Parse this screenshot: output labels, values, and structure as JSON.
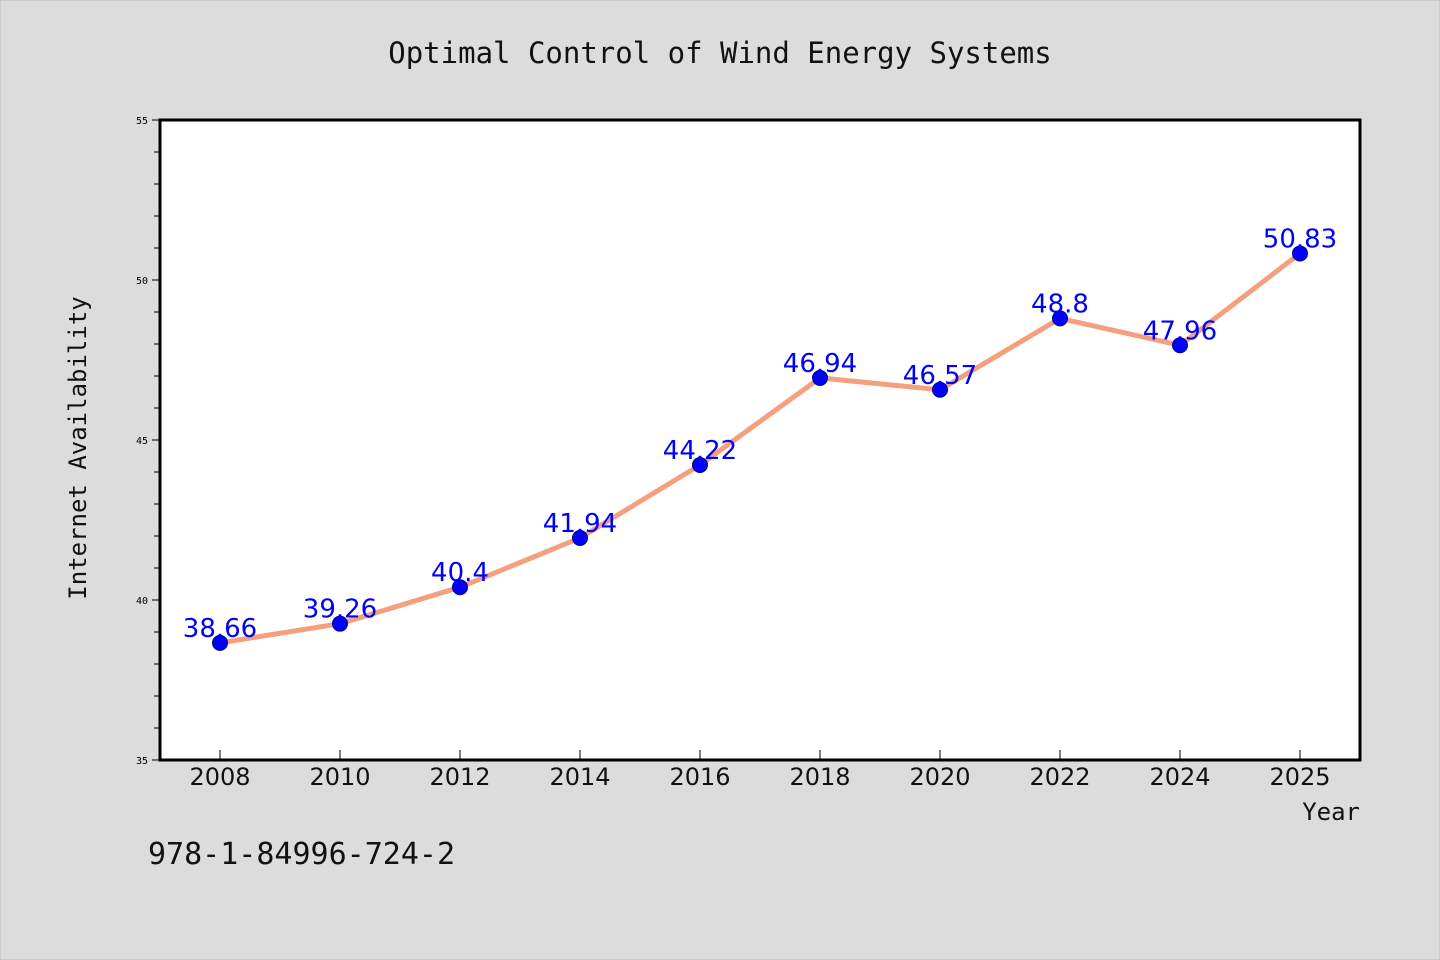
{
  "chart_data": {
    "type": "line",
    "title": "Optimal Control of Wind Energy Systems",
    "xlabel": "Year",
    "ylabel": "Internet Availability",
    "footnote": "978-1-84996-724-2",
    "x": [
      "2008",
      "2010",
      "2012",
      "2014",
      "2016",
      "2018",
      "2020",
      "2022",
      "2024",
      "2025"
    ],
    "y": [
      38.66,
      39.26,
      40.4,
      41.94,
      44.22,
      46.94,
      46.57,
      48.8,
      47.96,
      50.83
    ],
    "data_labels": [
      "38.66",
      "39.26",
      "40.4",
      "41.94",
      "44.22",
      "46.94",
      "46.57",
      "48.8",
      "47.96",
      "50.83"
    ],
    "ylim": [
      35,
      55
    ],
    "yticks": [
      "35",
      "40",
      "45",
      "50",
      "55"
    ],
    "grid": false,
    "line_color": "#f4a07e",
    "marker_color": "#0000ff",
    "label_color": "#0000ff",
    "background_color": "#dcdcdc",
    "plot_background": "#ffffff"
  }
}
